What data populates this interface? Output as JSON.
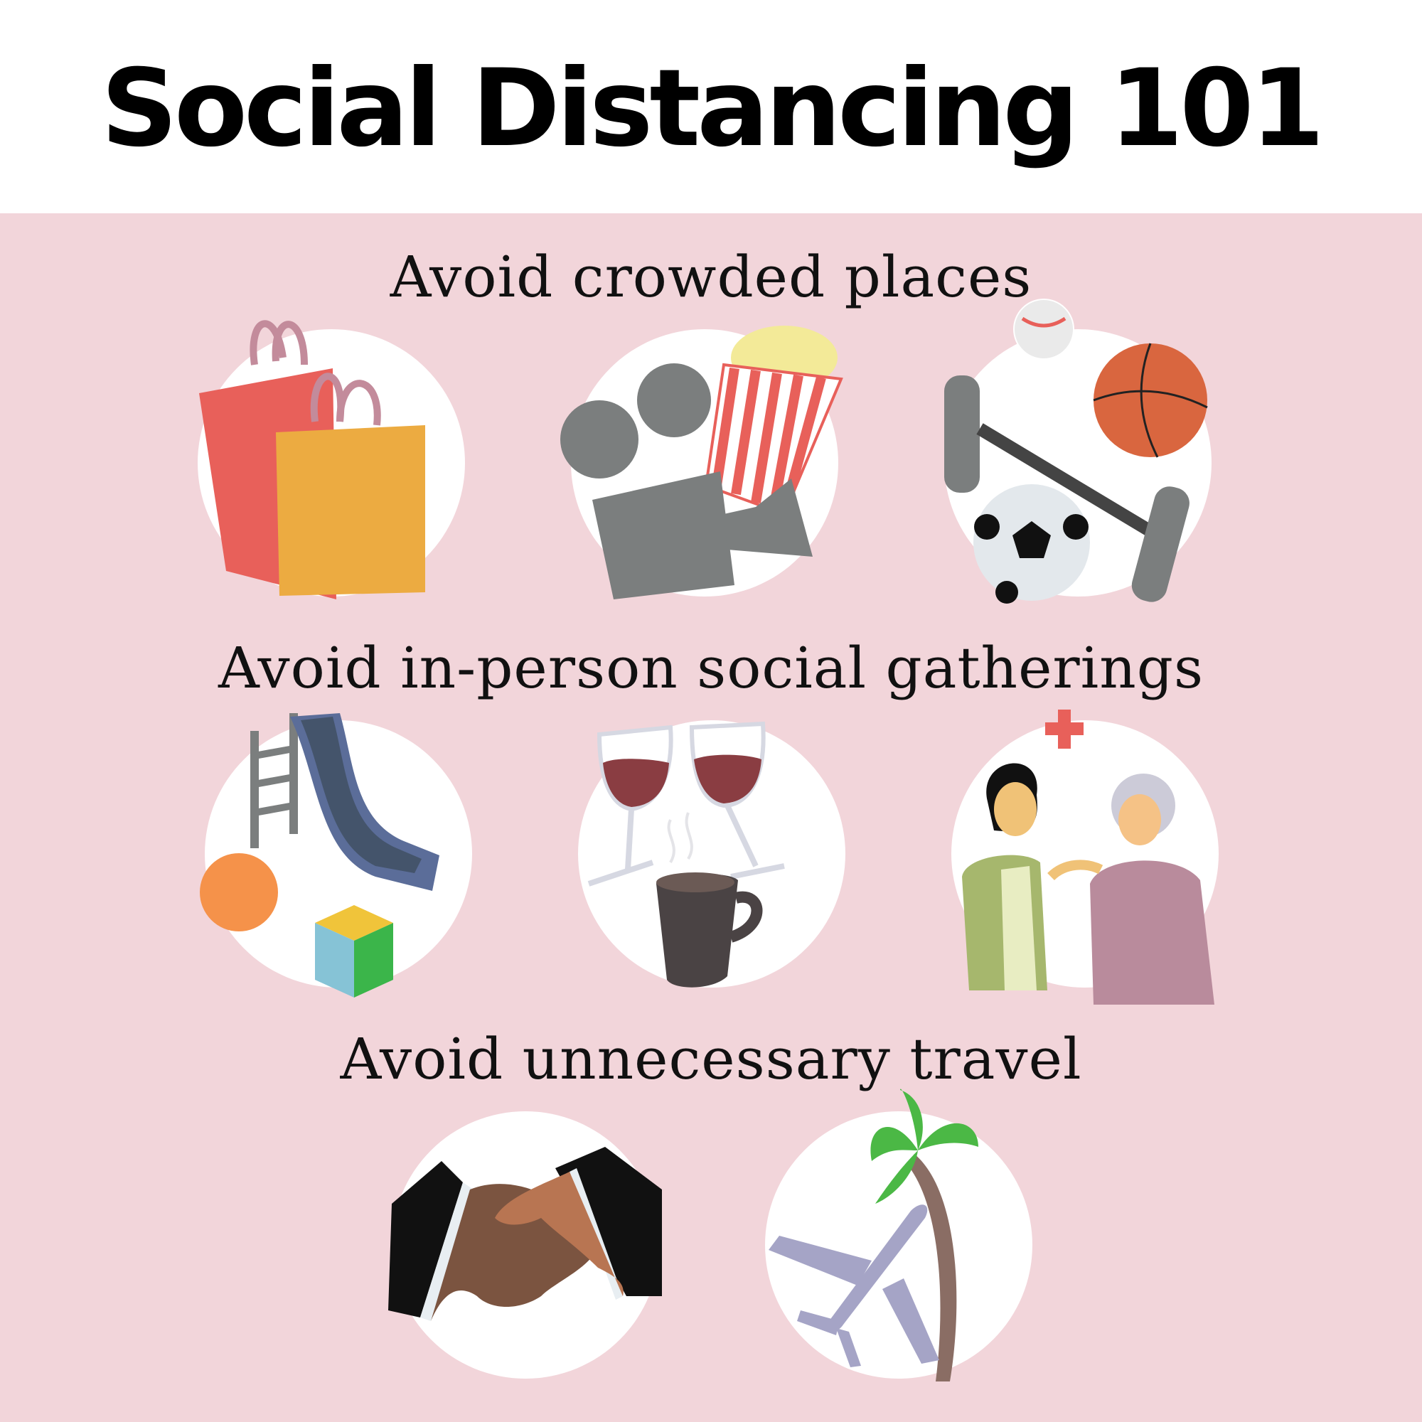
{
  "title": "Social Distancing 101",
  "colors": {
    "panel": "#f2d5da"
  },
  "sections": [
    {
      "heading": "Avoid crowded places",
      "icons": [
        {
          "name": "shopping-bags-icon"
        },
        {
          "name": "movie-camera-popcorn-icon"
        },
        {
          "name": "sports-equipment-icon"
        }
      ]
    },
    {
      "heading": "Avoid in-person social gatherings",
      "icons": [
        {
          "name": "playground-slide-icon"
        },
        {
          "name": "wine-coffee-icon"
        },
        {
          "name": "caregiver-elderly-icon"
        }
      ]
    },
    {
      "heading": "Avoid unnecessary travel",
      "icons": [
        {
          "name": "handshake-icon"
        },
        {
          "name": "airplane-palm-tree-icon"
        }
      ]
    }
  ]
}
